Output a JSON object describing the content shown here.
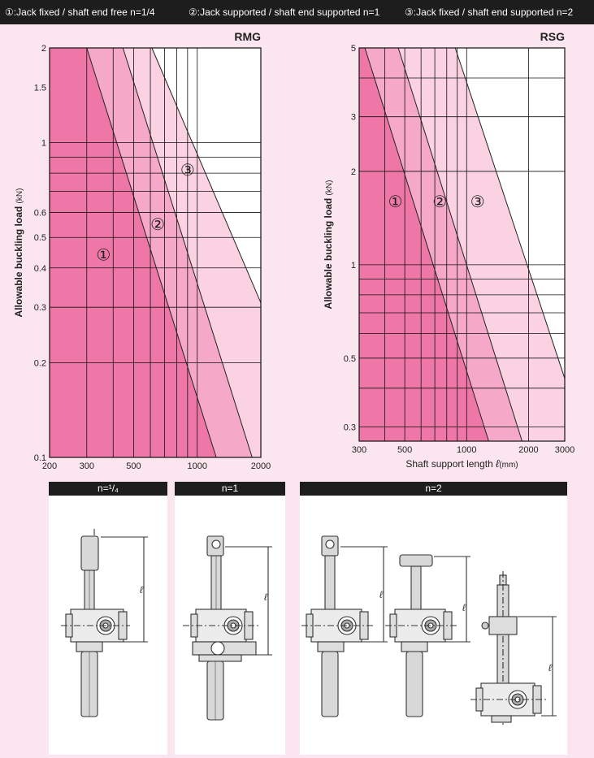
{
  "legend": {
    "case1": "①:Jack fixed / shaft end free   n=1/4",
    "case2": "②:Jack supported / shaft end supported   n=1",
    "case3": "③:Jack fixed / shaft end supported   n=2"
  },
  "chart_data": [
    {
      "type": "area",
      "title": "RMG",
      "xlabel_text": "Shaft support length",
      "xlabel_symbol": "ℓ",
      "xlabel_unit": "(mm)",
      "ylabel_text": "Allowable buckling load",
      "ylabel_unit": "(kN)",
      "x_scale": "log",
      "y_scale": "log",
      "xlim": [
        200,
        2000
      ],
      "ylim": [
        0.1,
        2
      ],
      "x_ticks": [
        200,
        300,
        500,
        1000,
        2000
      ],
      "x_tick_labels": [
        "200",
        "300",
        "500",
        "1000",
        "2000"
      ],
      "y_ticks": [
        0.1,
        0.2,
        0.3,
        0.4,
        0.5,
        0.6,
        1,
        1.5,
        2
      ],
      "y_tick_labels": [
        "0.1",
        "0.2",
        "0.3",
        "0.4",
        "0.5",
        "0.6",
        "1",
        "1.5",
        "2"
      ],
      "grid": true,
      "series": [
        {
          "name": "①",
          "points": [
            [
              300,
              2.0
            ],
            [
              1230,
              0.1
            ]
          ],
          "color": "#ef77a8"
        },
        {
          "name": "②",
          "points": [
            [
              445,
              2.0
            ],
            [
              1820,
              0.1
            ]
          ],
          "color": "#f5a8c8"
        },
        {
          "name": "③",
          "points": [
            [
              610,
              2.0
            ],
            [
              2000,
              0.31
            ]
          ],
          "color": "#fad2e2"
        }
      ],
      "labels": [
        {
          "text": "①",
          "x": 360,
          "y": 0.44
        },
        {
          "text": "②",
          "x": 650,
          "y": 0.55
        },
        {
          "text": "③",
          "x": 900,
          "y": 0.82
        }
      ]
    },
    {
      "type": "area",
      "title": "RSG",
      "xlabel_text": "Shaft support length",
      "xlabel_symbol": "ℓ",
      "xlabel_unit": "(mm)",
      "ylabel_text": "Allowable buckling load",
      "ylabel_unit": "(kN)",
      "x_scale": "log",
      "y_scale": "log",
      "xlim": [
        300,
        3000
      ],
      "ylim": [
        0.27,
        5
      ],
      "x_ticks": [
        300,
        500,
        1000,
        2000,
        3000
      ],
      "x_tick_labels": [
        "300",
        "500",
        "1000",
        "2000",
        "3000"
      ],
      "y_ticks": [
        0.3,
        0.5,
        1,
        2,
        3,
        5
      ],
      "y_tick_labels": [
        "0.3",
        "0.5",
        "1",
        "2",
        "3",
        "5"
      ],
      "grid": true,
      "series": [
        {
          "name": "①",
          "points": [
            [
              320,
              5.0
            ],
            [
              1280,
              0.27
            ]
          ],
          "color": "#ef77a8"
        },
        {
          "name": "②",
          "points": [
            [
              465,
              5.0
            ],
            [
              1860,
              0.27
            ]
          ],
          "color": "#f5a8c8"
        },
        {
          "name": "③",
          "points": [
            [
              880,
              5.0
            ],
            [
              3000,
              0.43
            ]
          ],
          "color": "#fad2e2"
        }
      ],
      "labels": [
        {
          "text": "①",
          "x": 450,
          "y": 1.6
        },
        {
          "text": "②",
          "x": 740,
          "y": 1.6
        },
        {
          "text": "③",
          "x": 1130,
          "y": 1.6
        }
      ]
    }
  ],
  "diagrams": {
    "panel1_head": "n=¹/₄",
    "panel2_head": "n=1",
    "panel3_head": "n=2",
    "length_symbol": "ℓ"
  }
}
